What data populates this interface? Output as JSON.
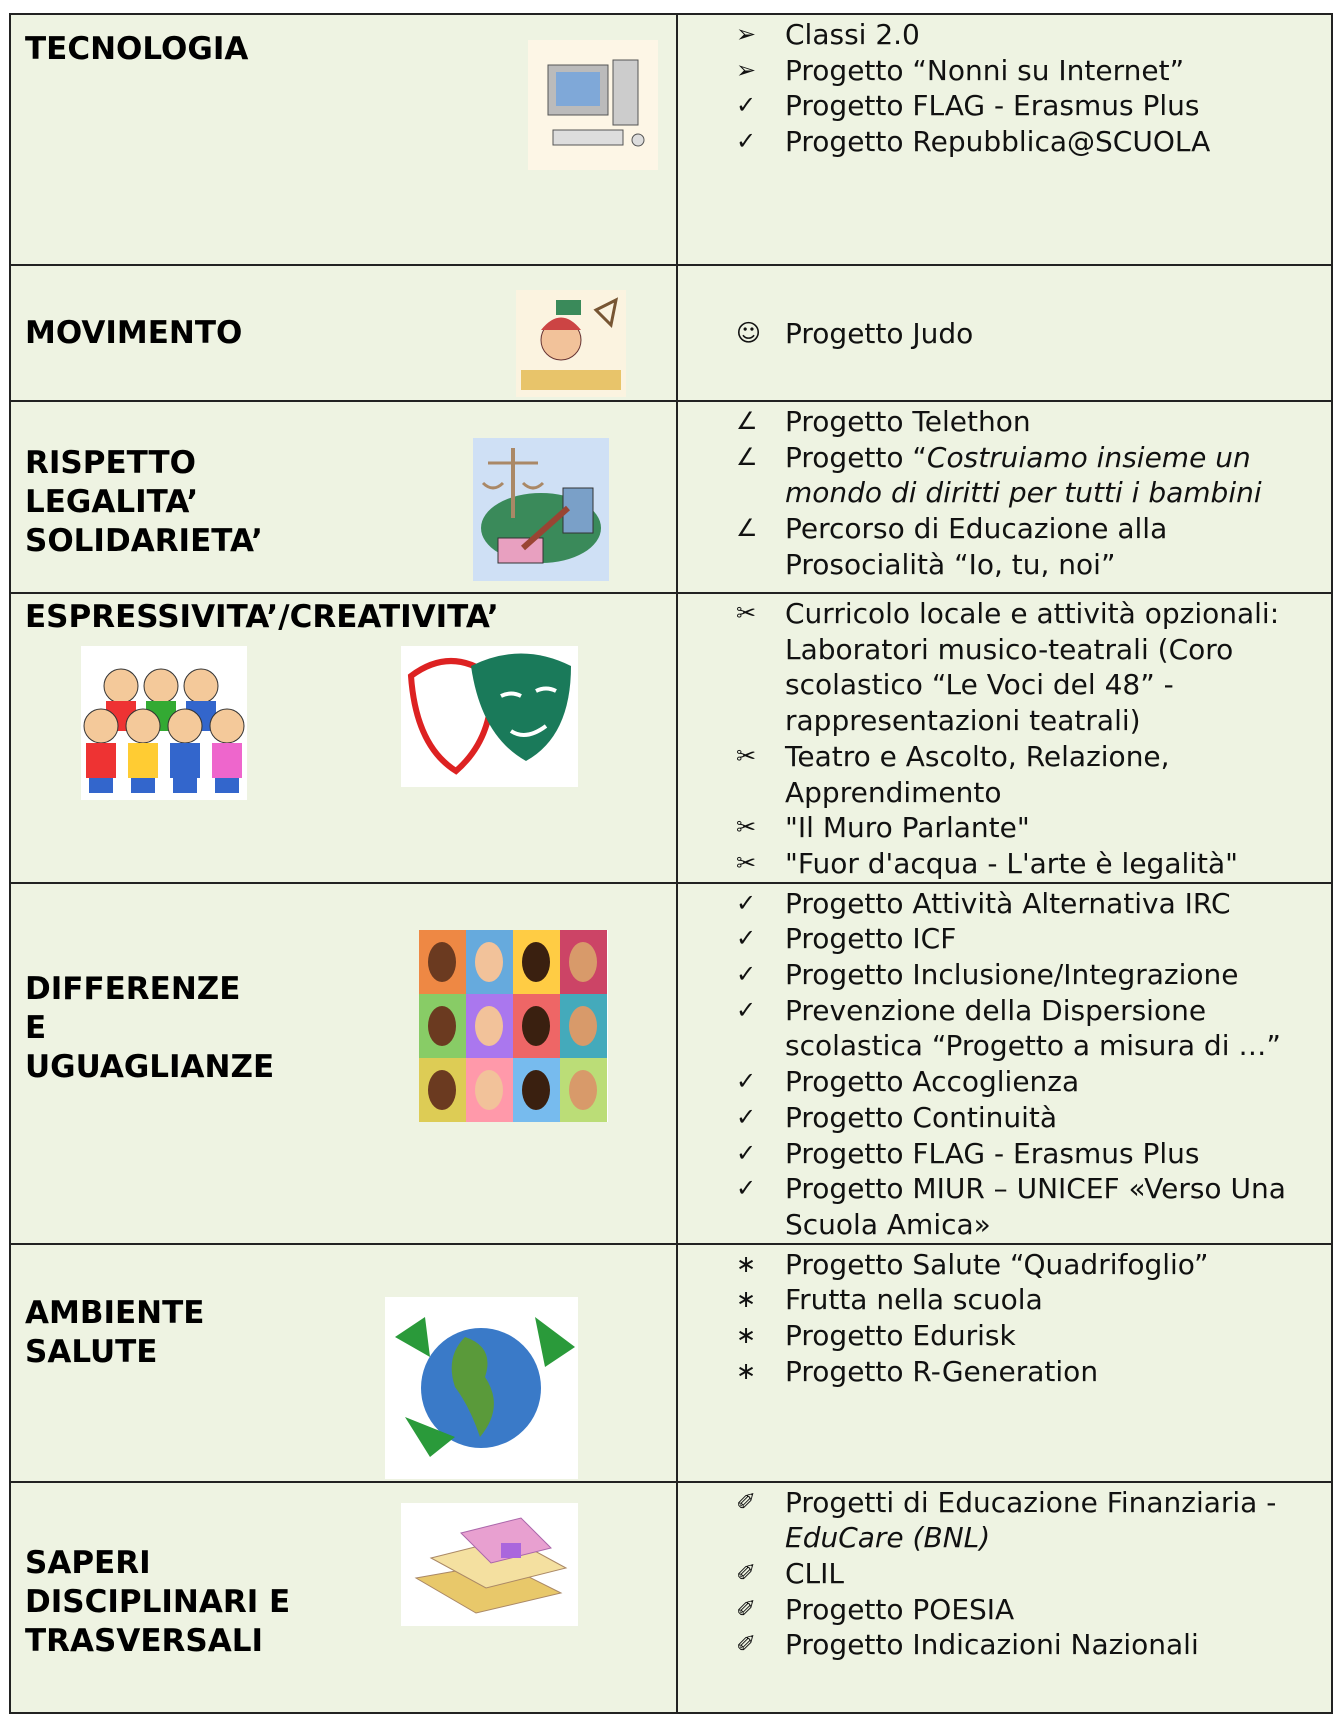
{
  "table": {
    "rows": [
      {
        "title": [
          "TECNOLOGIA"
        ],
        "items": [
          {
            "bullet": "➢",
            "text": "Classi 2.0"
          },
          {
            "bullet": "➢",
            "text": "Progetto “Nonni su Internet”"
          },
          {
            "bullet": "✓",
            "text": "Progetto FLAG - Erasmus Plus"
          },
          {
            "bullet": "✓",
            "text": "Progetto Repubblica@SCUOLA"
          }
        ]
      },
      {
        "title": [
          "MOVIMENTO"
        ],
        "items": [
          {
            "bullet": "☺",
            "text": "Progetto Judo"
          }
        ]
      },
      {
        "title": [
          "RISPETTO",
          "LEGALITA’",
          "SOLIDARIETA’"
        ],
        "items": [
          {
            "bullet": "∠",
            "text": "Progetto Telethon"
          },
          {
            "bullet": "∠",
            "text": "Progetto “",
            "italic": "Costruiamo insieme un mondo di diritti per tutti i bambini"
          },
          {
            "bullet": "∠",
            "text": "Percorso di Educazione alla Prosocialità “Io, tu, noi”"
          }
        ]
      },
      {
        "title": [
          "ESPRESSIVITA’/CREATIVITA’"
        ],
        "items": [
          {
            "bullet": "✂",
            "text": "Curricolo locale e attività opzionali: Laboratori musico-teatrali (Coro scolastico “Le Voci del 48” - rappresentazioni teatrali)"
          },
          {
            "bullet": "✂",
            "text": "Teatro e Ascolto, Relazione, Apprendimento"
          },
          {
            "bullet": "✂",
            "text": "\"Il Muro Parlante\""
          },
          {
            "bullet": "✂",
            "text": "\"Fuor d'acqua - L'arte è legalità\""
          }
        ]
      },
      {
        "title": [
          "DIFFERENZE",
          "E",
          "UGUAGLIANZE"
        ],
        "items": [
          {
            "bullet": "✓",
            "text": "Progetto Attività Alternativa IRC"
          },
          {
            "bullet": "✓",
            "text": "Progetto ICF"
          },
          {
            "bullet": "✓",
            "text": "Progetto  Inclusione/Integrazione"
          },
          {
            "bullet": "✓",
            "text": "Prevenzione della Dispersione scolastica   “Progetto a misura di …”"
          },
          {
            "bullet": "✓",
            "text": "Progetto Accoglienza"
          },
          {
            "bullet": "✓",
            "text": "Progetto Continuità"
          },
          {
            "bullet": "✓",
            "text": "Progetto FLAG - Erasmus Plus"
          },
          {
            "bullet": "✓",
            "text": "Progetto MIUR – UNICEF «Verso Una Scuola Amica»"
          }
        ]
      },
      {
        "title": [
          "AMBIENTE",
          "SALUTE"
        ],
        "items": [
          {
            "bullet": "∗",
            "text": "Progetto Salute “Quadrifoglio”"
          },
          {
            "bullet": "∗",
            "text": "Frutta nella scuola"
          },
          {
            "bullet": "∗",
            "text": "Progetto Edurisk"
          },
          {
            "bullet": "∗",
            "text": "Progetto R-Generation"
          }
        ]
      },
      {
        "title": [
          "SAPERI",
          "DISCIPLINARI E",
          "TRASVERSALI"
        ],
        "items": [
          {
            "bullet": "✐",
            "text": "Progetti di Educazione Finanziaria - ",
            "italic": "EduCare (BNL)"
          },
          {
            "bullet": "✐",
            "text": "CLIL"
          },
          {
            "bullet": "✐",
            "text": "Progetto POESIA"
          },
          {
            "bullet": "✐",
            "text": "Progetto Indicazioni Nazionali"
          }
        ]
      }
    ]
  }
}
